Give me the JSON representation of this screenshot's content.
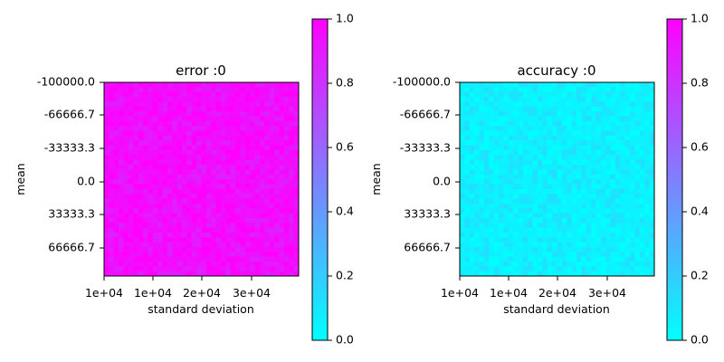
{
  "chart_data": [
    {
      "type": "heatmap",
      "title": "error :0",
      "xlabel": "standard deviation",
      "ylabel": "mean",
      "x_tick_labels": [
        "1e+04",
        "1e+04",
        "2e+04",
        "3e+04"
      ],
      "y_tick_labels": [
        "-100000.0",
        "-66666.7",
        "-33333.3",
        "0.0",
        "33333.3",
        "66666.7"
      ],
      "grid_size": [
        40,
        40
      ],
      "value_base": 0.95,
      "value_noise": 0.08,
      "colorbar": {
        "range": [
          0.0,
          1.0
        ],
        "tick_labels": [
          "0.0",
          "0.2",
          "0.4",
          "0.6",
          "0.8",
          "1.0"
        ],
        "colormap": "cool"
      }
    },
    {
      "type": "heatmap",
      "title": "accuracy :0",
      "xlabel": "standard deviation",
      "ylabel": "mean",
      "x_tick_labels": [
        "1e+04",
        "1e+04",
        "2e+04",
        "3e+04"
      ],
      "y_tick_labels": [
        "-100000.0",
        "-66666.7",
        "-33333.3",
        "0.0",
        "33333.3",
        "66666.7"
      ],
      "grid_size": [
        40,
        40
      ],
      "value_base": 0.05,
      "value_noise": 0.08,
      "colorbar": {
        "range": [
          0.0,
          1.0
        ],
        "tick_labels": [
          "0.0",
          "0.2",
          "0.4",
          "0.6",
          "0.8",
          "1.0"
        ],
        "colormap": "cool"
      }
    }
  ],
  "colors": {
    "cmap_low": "#00ffff",
    "cmap_high": "#ff00ff"
  }
}
